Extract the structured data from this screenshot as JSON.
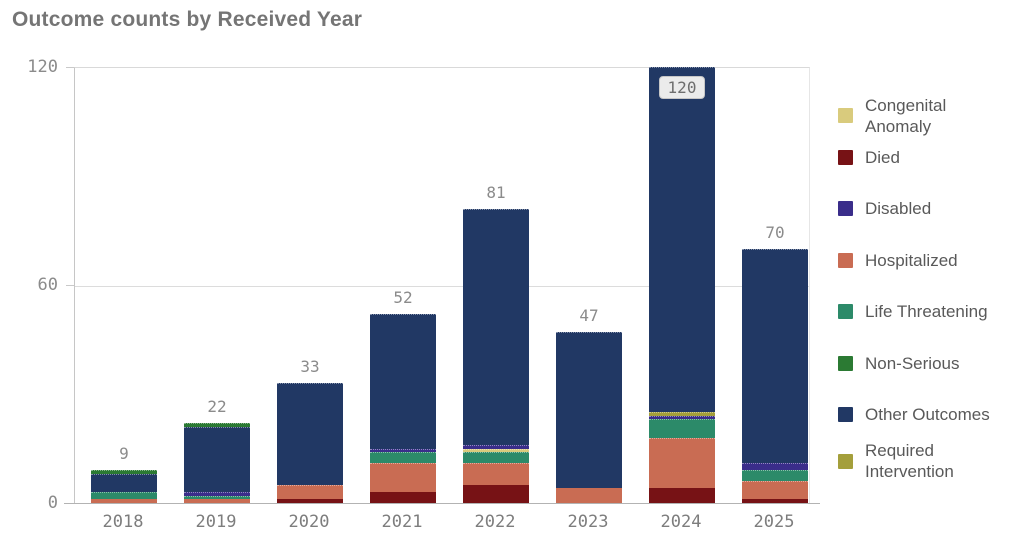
{
  "title": "Outcome counts by Received Year",
  "chart_data": {
    "type": "bar",
    "stacked": true,
    "title": "Outcome counts by Received Year",
    "xlabel": "",
    "ylabel": "",
    "categories": [
      "2018",
      "2019",
      "2020",
      "2021",
      "2022",
      "2023",
      "2024",
      "2025"
    ],
    "totals": [
      9,
      22,
      33,
      52,
      81,
      47,
      120,
      70
    ],
    "series": [
      {
        "name": "Died",
        "color": "#771215",
        "values": [
          0,
          0,
          1,
          3,
          5,
          0,
          4,
          1
        ]
      },
      {
        "name": "Hospitalized",
        "color": "#c96c53",
        "values": [
          1,
          1,
          4,
          8,
          6,
          4,
          14,
          5
        ]
      },
      {
        "name": "Life Threatening",
        "color": "#2c8a69",
        "values": [
          2,
          1,
          0,
          3,
          3,
          0,
          5,
          3
        ]
      },
      {
        "name": "Congenital Anomaly",
        "color": "#d9cb7d",
        "values": [
          0,
          0,
          0,
          0,
          1,
          0,
          0,
          0
        ]
      },
      {
        "name": "Disabled",
        "color": "#3a2d8a",
        "values": [
          0,
          1,
          0,
          1,
          1,
          0,
          1,
          2
        ]
      },
      {
        "name": "Required Intervention",
        "color": "#a49f3b",
        "values": [
          0,
          0,
          0,
          0,
          0,
          0,
          1,
          0
        ]
      },
      {
        "name": "Other Outcomes",
        "color": "#213864",
        "values": [
          5,
          18,
          28,
          37,
          65,
          43,
          95,
          59
        ]
      },
      {
        "name": "Non-Serious",
        "color": "#2b7a33",
        "values": [
          1,
          1,
          0,
          0,
          0,
          0,
          0,
          0
        ]
      }
    ],
    "y_axis": {
      "ticks": [
        0,
        60,
        120
      ],
      "max": 120
    },
    "legend_position": "right",
    "grid": true
  },
  "legend": {
    "items": [
      {
        "label": "Congenital Anomaly",
        "color": "#d9cb7d"
      },
      {
        "label": "Died",
        "color": "#771215"
      },
      {
        "label": "Disabled",
        "color": "#3a2d8a"
      },
      {
        "label": "Hospitalized",
        "color": "#c96c53"
      },
      {
        "label": "Life Threatening",
        "color": "#2c8a69"
      },
      {
        "label": "Non-Serious",
        "color": "#2b7a33"
      },
      {
        "label": "Other Outcomes",
        "color": "#213864"
      },
      {
        "label": "Required Intervention",
        "color": "#a49f3b"
      }
    ]
  }
}
